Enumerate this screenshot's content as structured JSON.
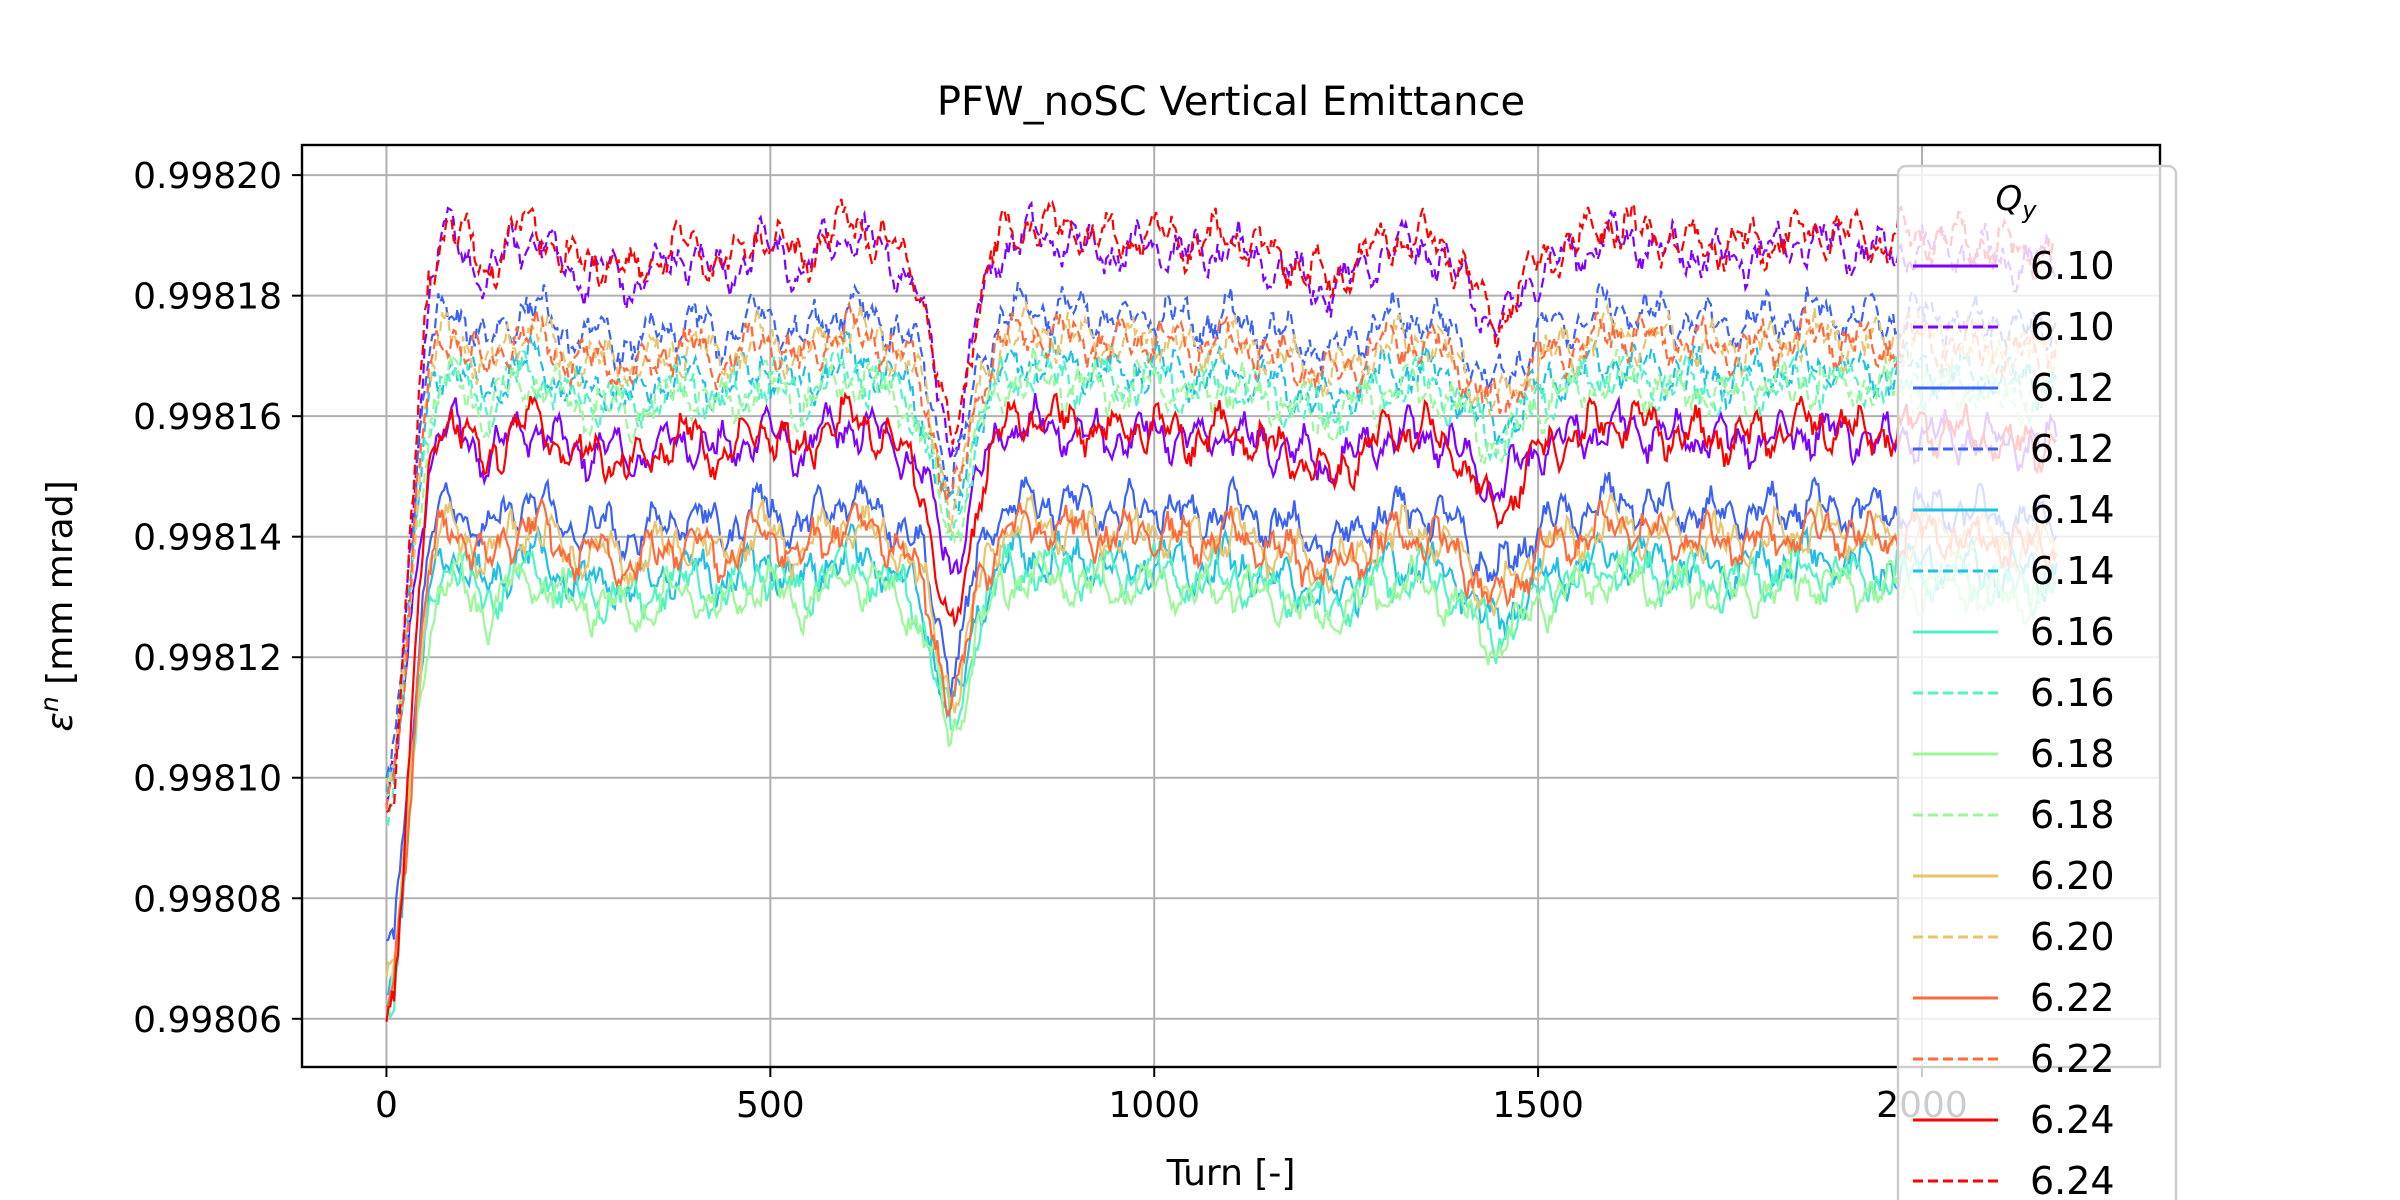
{
  "chart_data": {
    "type": "line",
    "title": "PFW_noSC Vertical Emittance",
    "xlabel": "Turn [-]",
    "ylabel_symbol": "ε",
    "ylabel_superscript": "n",
    "ylabel_units": " [mm mrad]",
    "xlim": [
      -110,
      2310
    ],
    "ylim": [
      0.998052,
      0.998205
    ],
    "x_ticks": [
      0,
      500,
      1000,
      1500,
      2000
    ],
    "x_tick_labels": [
      "0",
      "500",
      "1000",
      "1500",
      "2000"
    ],
    "y_ticks": [
      0.99806,
      0.99808,
      0.9981,
      0.99812,
      0.99814,
      0.99816,
      0.99818,
      0.9982
    ],
    "y_tick_labels": [
      "0.99806",
      "0.99808",
      "0.99810",
      "0.99812",
      "0.99814",
      "0.99816",
      "0.99818",
      "0.99820"
    ],
    "grid": true,
    "legend": {
      "title_main": "Q",
      "title_sub": "y",
      "placement": "right, extending past bottom of axes"
    },
    "curve_profile_x": [
      0,
      10,
      25,
      40,
      55,
      70,
      85,
      100,
      130,
      160,
      190,
      220,
      250,
      290,
      320,
      360,
      400,
      430,
      460,
      490,
      510,
      540,
      570,
      600,
      640,
      680,
      700,
      720,
      735,
      750,
      770,
      800,
      840,
      880,
      920,
      960,
      1000,
      1050,
      1100,
      1150,
      1200,
      1230,
      1260,
      1300,
      1350,
      1400,
      1430,
      1445,
      1470,
      1500,
      1550,
      1600,
      1650,
      1700,
      1750,
      1800,
      1850,
      1900,
      1950,
      2000,
      2060,
      2100,
      2140,
      2175
    ],
    "curve_profile_shape": [
      0.0,
      0.06,
      0.32,
      0.65,
      0.88,
      0.97,
      0.99,
      0.97,
      0.9,
      0.97,
      0.99,
      0.95,
      0.92,
      0.93,
      0.9,
      0.94,
      0.96,
      0.92,
      0.94,
      0.98,
      0.96,
      0.92,
      0.97,
      0.99,
      0.97,
      0.92,
      0.86,
      0.72,
      0.62,
      0.68,
      0.86,
      0.97,
      0.99,
      0.98,
      0.97,
      0.96,
      0.98,
      0.95,
      0.97,
      0.94,
      0.91,
      0.89,
      0.92,
      0.96,
      0.97,
      0.92,
      0.85,
      0.82,
      0.87,
      0.93,
      0.96,
      0.99,
      0.97,
      0.96,
      0.95,
      0.96,
      0.98,
      0.97,
      0.96,
      0.97,
      0.96,
      0.95,
      0.94,
      0.95
    ],
    "series": [
      {
        "name": "6.10",
        "color": "#8000ff",
        "dash": "solid",
        "start": 0.998095,
        "plateau": 0.998159
      },
      {
        "name": "6.10",
        "color": "#8000ff",
        "dash": "dashed",
        "start": 0.998095,
        "plateau": 0.998191
      },
      {
        "name": "6.12",
        "color": "#3b62f6",
        "dash": "solid",
        "start": 0.99807,
        "plateau": 0.998147
      },
      {
        "name": "6.12",
        "color": "#3b62f6",
        "dash": "dashed",
        "start": 0.9981,
        "plateau": 0.998179
      },
      {
        "name": "6.14",
        "color": "#1fbfe6",
        "dash": "solid",
        "start": 0.998064,
        "plateau": 0.998138
      },
      {
        "name": "6.14",
        "color": "#1fbfe6",
        "dash": "dashed",
        "start": 0.998098,
        "plateau": 0.99817
      },
      {
        "name": "6.16",
        "color": "#52f3c3",
        "dash": "solid",
        "start": 0.998062,
        "plateau": 0.998136
      },
      {
        "name": "6.16",
        "color": "#52f3c3",
        "dash": "dashed",
        "start": 0.998096,
        "plateau": 0.998168
      },
      {
        "name": "6.18",
        "color": "#9cf79a",
        "dash": "solid",
        "start": 0.998062,
        "plateau": 0.998134
      },
      {
        "name": "6.18",
        "color": "#9cf79a",
        "dash": "dashed",
        "start": 0.998096,
        "plateau": 0.998167
      },
      {
        "name": "6.20",
        "color": "#e8c46e",
        "dash": "solid",
        "start": 0.998064,
        "plateau": 0.998143
      },
      {
        "name": "6.20",
        "color": "#e8c46e",
        "dash": "dashed",
        "start": 0.998097,
        "plateau": 0.998175
      },
      {
        "name": "6.22",
        "color": "#ff6a3a",
        "dash": "solid",
        "start": 0.998062,
        "plateau": 0.998143
      },
      {
        "name": "6.22",
        "color": "#ff6a3a",
        "dash": "dashed",
        "start": 0.998096,
        "plateau": 0.998175
      },
      {
        "name": "6.24",
        "color": "#ff0000",
        "dash": "solid",
        "start": 0.99806,
        "plateau": 0.998161
      },
      {
        "name": "6.24",
        "color": "#ff0000",
        "dash": "dashed",
        "start": 0.998094,
        "plateau": 0.998193
      }
    ]
  }
}
